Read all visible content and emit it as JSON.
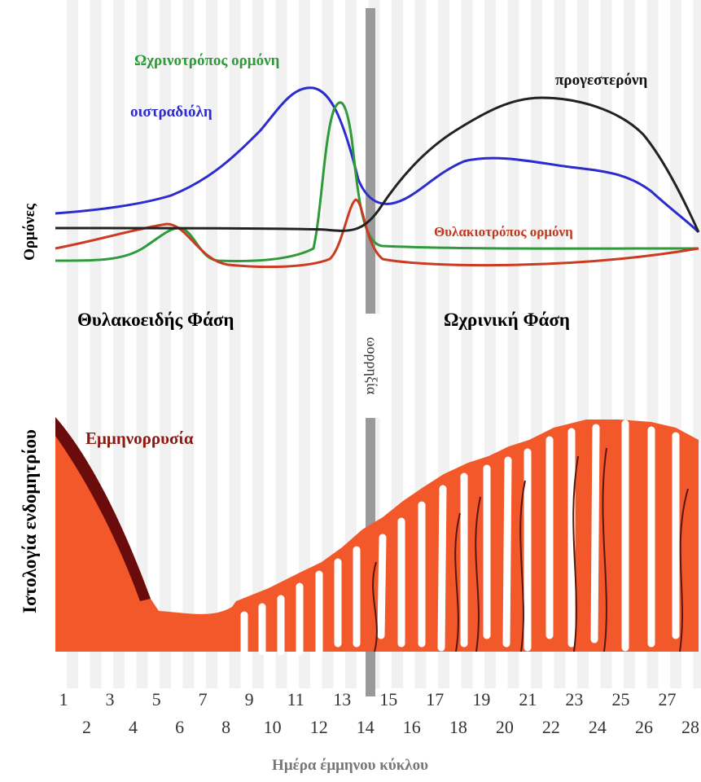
{
  "hormones": {
    "axis_label": "Ορμόνες",
    "lh": "Ωχρινοτρόπος ορμόνη",
    "estradiol": "οιστραδιόλη",
    "progesterone": "προγεστερόνη",
    "fsh": "Θυλακιοτρόπος ορμόνη"
  },
  "phases": {
    "follicular": "Θυλακοειδής Φάση",
    "luteal": "Ωχρινική Φάση",
    "ovulation": "ωορρηξία"
  },
  "endometrium": {
    "axis_label": "Ιστολογία ενδομητρίου",
    "menstruation": "Εμμηνορρυσία"
  },
  "days": {
    "labels": [
      1,
      2,
      3,
      4,
      5,
      6,
      7,
      8,
      9,
      10,
      11,
      12,
      13,
      14,
      15,
      16,
      17,
      18,
      19,
      20,
      21,
      22,
      23,
      24,
      25,
      26,
      27,
      28
    ],
    "title": "Ημέρα έμμηνου κύκλου"
  }
}
